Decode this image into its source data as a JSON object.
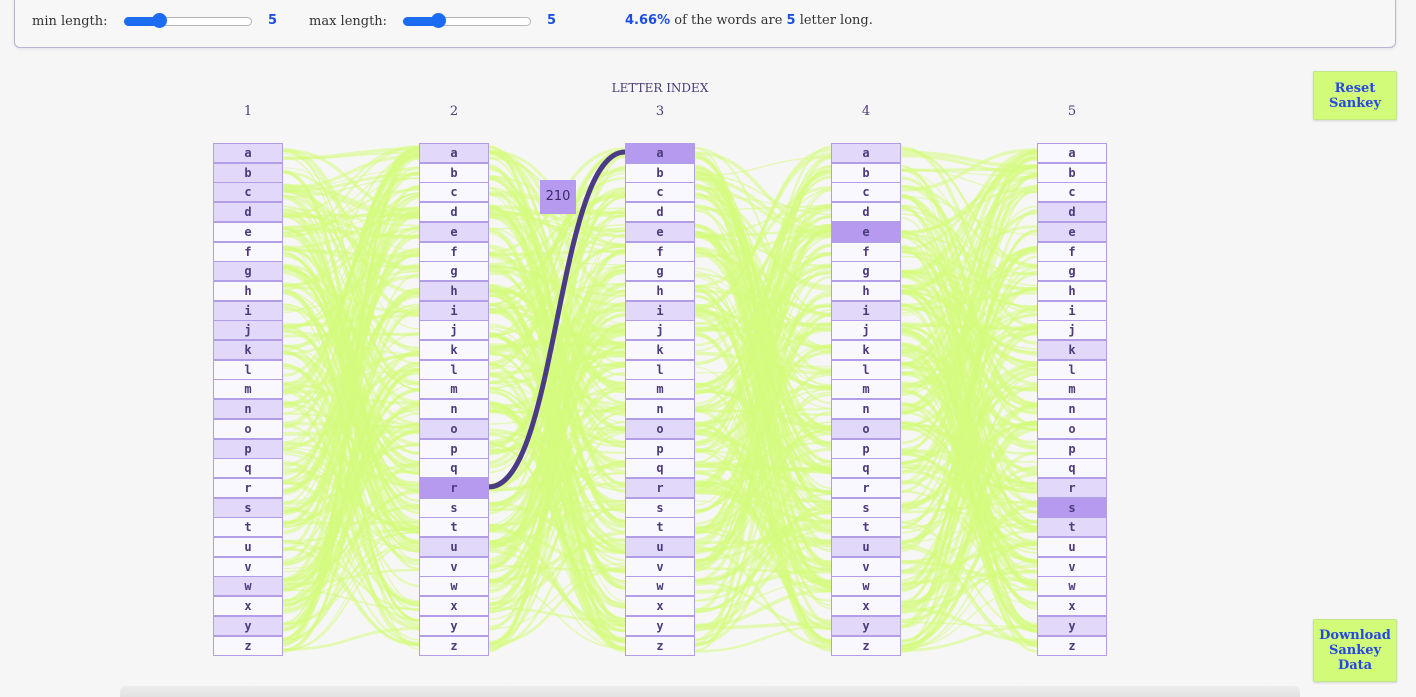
{
  "controls": {
    "min_label": "min length:",
    "min_value": "5",
    "min_fraction": 0.27,
    "max_label": "max length:",
    "max_value": "5",
    "max_fraction": 0.27
  },
  "summary": {
    "percent": "4.66%",
    "text_a": " of the words are ",
    "length": "5",
    "text_b": " letter long."
  },
  "chart": {
    "title": "LETTER INDEX",
    "columns": [
      "1",
      "2",
      "3",
      "4",
      "5"
    ],
    "letters": [
      "a",
      "b",
      "c",
      "d",
      "e",
      "f",
      "g",
      "h",
      "i",
      "j",
      "k",
      "l",
      "m",
      "n",
      "o",
      "p",
      "q",
      "r",
      "s",
      "t",
      "u",
      "v",
      "w",
      "x",
      "y",
      "z"
    ],
    "highlight_link": {
      "from_column": "2",
      "from_letter": "r",
      "to_column": "3",
      "to_letter": "a",
      "value": "210"
    },
    "link_color": "#d6fb7d",
    "highlight_color": "#4b3a86",
    "node_tint": "#e2d8fa",
    "node_selected": "#b69af0",
    "tinted_nodes": {
      "1": [
        "a",
        "b",
        "c",
        "d",
        "g",
        "i",
        "j",
        "k",
        "n",
        "p",
        "s",
        "w",
        "y"
      ],
      "2": [
        "a",
        "e",
        "h",
        "i",
        "o",
        "u"
      ],
      "3": [
        "e",
        "i",
        "o",
        "r",
        "u"
      ],
      "4": [
        "a",
        "e",
        "i",
        "o",
        "u",
        "y"
      ],
      "5": [
        "d",
        "e",
        "k",
        "r",
        "t",
        "y"
      ]
    },
    "selected_nodes": {
      "2": [
        "r"
      ],
      "3": [
        "a"
      ],
      "4": [
        "e"
      ],
      "5": [
        "s"
      ]
    }
  },
  "buttons": {
    "reset": "Reset Sankey",
    "download": "Download Sankey Data"
  }
}
